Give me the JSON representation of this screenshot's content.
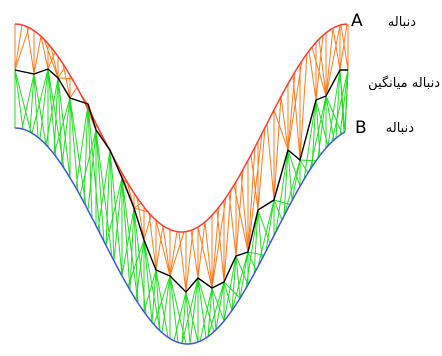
{
  "labels": {
    "sequence_a": {
      "word": "دنباله",
      "letter": "A"
    },
    "mean_sequence": "دنباله میانگین",
    "sequence_b": {
      "word": "دنباله",
      "letter": "B"
    }
  },
  "colors": {
    "curve_a": "#ff3b2f",
    "curve_b": "#3b55e6",
    "mean_path": "#000000",
    "links_a": "#ff7a1a",
    "links_b": "#22dd22"
  }
}
